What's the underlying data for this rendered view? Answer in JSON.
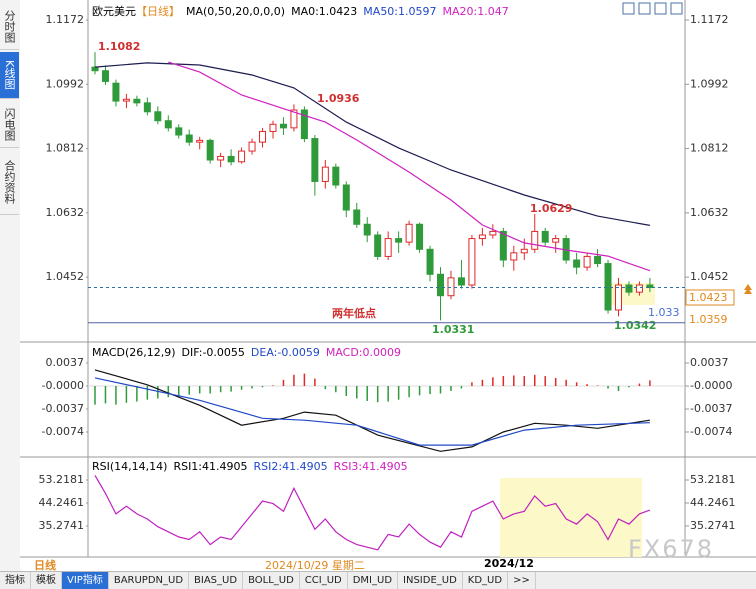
{
  "ui": {
    "side_tabs": [
      "分时图",
      "K线图",
      "闪电图",
      "合约资料"
    ],
    "bottom_tabs": [
      "指标",
      "模板",
      "VIP指标",
      "BARUPDN_UD",
      "BIAS_UD",
      "BOLL_UD",
      "CCI_UD",
      "DMI_UD",
      "INSIDE_UD",
      "KD_UD",
      ">>"
    ],
    "period": "日线",
    "date_cursor": "2024/10/29 星期二",
    "month_label": "2024/12",
    "watermark": "FX678"
  },
  "chart_data": [
    {
      "type": "candlestick",
      "title": "欧元美元",
      "period_tag": "【日线】",
      "indicator": "MA(0,50,20,0,0,0)",
      "legend": [
        "MA0:1.0423",
        "MA50:1.0597",
        "MA20:1.047"
      ],
      "up_color": "#e02828",
      "down_color": "#2e9a3a",
      "ylim": [
        1.0276,
        1.1214
      ],
      "yticks": [
        1.1172,
        1.0992,
        1.0812,
        1.0632,
        1.0452
      ],
      "open": [
        1.104,
        1.103,
        1.0995,
        1.0945,
        1.095,
        1.094,
        1.0915,
        1.089,
        1.087,
        1.085,
        1.083,
        1.0835,
        1.078,
        1.079,
        1.0775,
        1.0805,
        1.083,
        1.086,
        1.088,
        1.087,
        1.092,
        1.084,
        1.072,
        1.076,
        1.071,
        1.064,
        1.06,
        1.057,
        1.051,
        1.056,
        1.055,
        1.06,
        1.053,
        1.046,
        1.04,
        1.045,
        1.043,
        1.056,
        1.057,
        1.058,
        1.05,
        1.052,
        1.053,
        1.058,
        1.055,
        1.056,
        1.05,
        1.048,
        1.051,
        1.049,
        1.036,
        1.043,
        1.041,
        1.043
      ],
      "high": [
        1.1082,
        1.1045,
        1.1005,
        1.0965,
        1.096,
        1.0955,
        1.093,
        1.0905,
        1.088,
        1.0865,
        1.0845,
        1.084,
        1.08,
        1.081,
        1.0815,
        1.084,
        1.087,
        1.089,
        1.09,
        1.0936,
        1.093,
        1.085,
        1.078,
        1.077,
        1.072,
        1.066,
        1.062,
        1.058,
        1.058,
        1.058,
        1.061,
        1.0605,
        1.054,
        1.048,
        1.047,
        1.05,
        1.057,
        1.059,
        1.06,
        1.059,
        1.054,
        1.056,
        1.0629,
        1.059,
        1.057,
        1.057,
        1.052,
        1.052,
        1.053,
        1.05,
        1.045,
        1.044,
        1.044,
        1.045
      ],
      "low": [
        1.102,
        1.099,
        1.093,
        1.0925,
        1.093,
        1.0905,
        1.088,
        1.086,
        1.084,
        1.082,
        1.081,
        1.077,
        1.076,
        1.0765,
        1.077,
        1.0795,
        1.0815,
        1.084,
        1.085,
        1.086,
        1.083,
        1.068,
        1.07,
        1.07,
        1.062,
        1.059,
        1.055,
        1.05,
        1.05,
        1.052,
        1.054,
        1.052,
        1.044,
        1.0331,
        1.039,
        1.042,
        1.042,
        1.054,
        1.056,
        1.048,
        1.047,
        1.05,
        1.052,
        1.054,
        1.052,
        1.049,
        1.046,
        1.047,
        1.048,
        1.035,
        1.0342,
        1.04,
        1.04,
        1.041
      ],
      "close": [
        1.103,
        1.1,
        1.0945,
        1.095,
        1.094,
        1.0915,
        1.089,
        1.087,
        1.085,
        1.083,
        1.0835,
        1.078,
        1.079,
        1.0775,
        1.0805,
        1.083,
        1.086,
        1.088,
        1.087,
        1.092,
        1.084,
        1.072,
        1.076,
        1.071,
        1.064,
        1.06,
        1.057,
        1.051,
        1.056,
        1.055,
        1.06,
        1.053,
        1.046,
        1.04,
        1.045,
        1.043,
        1.056,
        1.057,
        1.058,
        1.05,
        1.052,
        1.053,
        1.058,
        1.055,
        1.056,
        1.05,
        1.048,
        1.051,
        1.049,
        1.036,
        1.043,
        1.041,
        1.043,
        1.0423
      ],
      "series": [
        {
          "color": "#1c1c50",
          "x": [
            0,
            5,
            10,
            15,
            19,
            24,
            29,
            34,
            41,
            48,
            53
          ],
          "values": [
            1.104,
            1.1052,
            1.1046,
            1.1018,
            1.0982,
            1.0886,
            1.0814,
            1.0752,
            1.0682,
            1.0623,
            1.0597
          ]
        },
        {
          "color": "#d020c0",
          "x": [
            7,
            10,
            14,
            19,
            22,
            25,
            30,
            34,
            37,
            41,
            45,
            49,
            53
          ],
          "values": [
            1.1054,
            1.1026,
            1.0962,
            1.0914,
            1.0886,
            1.0836,
            1.0746,
            1.0668,
            1.0598,
            1.0548,
            1.0528,
            1.0511,
            1.047
          ]
        }
      ],
      "annotations": [
        "1.1082",
        "1.0936",
        "1.0629",
        "1.0331",
        "1.0342",
        "两年低点"
      ],
      "price_labels": [
        1.0423,
        1.0359,
        1.033
      ]
    },
    {
      "type": "macd",
      "title": "MACD(26,12,9)",
      "legend": [
        "DIF:-0.0055",
        "DEA:-0.0059",
        "MACD:0.0009"
      ],
      "ylim": [
        -0.0111,
        0.0066
      ],
      "yticks": [
        0.0037,
        {
          "value": 0,
          "label": "-0.0000"
        },
        -0.0037,
        -0.0074
      ],
      "up_color": "#e02828",
      "down_color": "#2e9a3a",
      "values": [
        -0.003,
        -0.0028,
        -0.003,
        -0.0027,
        -0.0025,
        -0.0022,
        -0.002,
        -0.0018,
        -0.0016,
        -0.0014,
        -0.0012,
        -0.0012,
        -0.001,
        -0.0009,
        -0.0006,
        -0.0004,
        -0.0002,
        0.0001,
        0.001,
        0.0018,
        0.002,
        0.0012,
        -0.0005,
        -0.001,
        -0.0016,
        -0.002,
        -0.0024,
        -0.0026,
        -0.0025,
        -0.0022,
        -0.0018,
        -0.0015,
        -0.0013,
        -0.0012,
        -0.0008,
        -0.0004,
        0.0006,
        0.001,
        0.0014,
        0.0016,
        0.0017,
        0.0016,
        0.0018,
        0.0016,
        0.0013,
        0.001,
        0.0006,
        0.0003,
        0.0001,
        -0.0004,
        -0.0008,
        -0.0002,
        0.0004,
        0.0009
      ],
      "series": [
        {
          "color": "#111111",
          "x": [
            0,
            5,
            10,
            14,
            18,
            20,
            23,
            27,
            33,
            36,
            39,
            42,
            45,
            48,
            53
          ],
          "values": [
            0.0026,
            0.0002,
            -0.0031,
            -0.0063,
            -0.0052,
            -0.0042,
            -0.0047,
            -0.0079,
            -0.0105,
            -0.0098,
            -0.0074,
            -0.006,
            -0.0063,
            -0.0068,
            -0.0055
          ]
        },
        {
          "color": "#2048c8",
          "x": [
            0,
            10,
            16,
            20,
            25,
            31,
            36,
            41,
            46,
            53
          ],
          "values": [
            0.0013,
            -0.0023,
            -0.0052,
            -0.0055,
            -0.0063,
            -0.0095,
            -0.0095,
            -0.0071,
            -0.0063,
            -0.0059
          ]
        }
      ]
    },
    {
      "type": "line",
      "title": "RSI(14,14,14)",
      "legend": [
        "RSI1:41.4905",
        "RSI2:41.4905",
        "RSI3:41.4905"
      ],
      "ylim": [
        23.96,
        61.02
      ],
      "yticks": [
        53.2181,
        44.2461,
        35.2741
      ],
      "color": "#c020c0",
      "values": [
        55,
        48,
        40,
        43,
        40,
        38,
        35,
        33,
        31,
        30,
        33,
        28,
        31,
        30,
        35,
        40,
        45,
        44,
        41,
        50,
        42,
        34,
        38,
        33,
        30,
        28,
        27,
        26,
        32,
        31,
        36,
        32,
        29,
        27,
        33,
        31,
        41,
        43,
        45,
        38,
        40,
        41,
        47,
        43,
        44,
        38,
        36,
        40,
        37,
        30,
        38,
        36,
        40,
        41.4905
      ]
    }
  ]
}
